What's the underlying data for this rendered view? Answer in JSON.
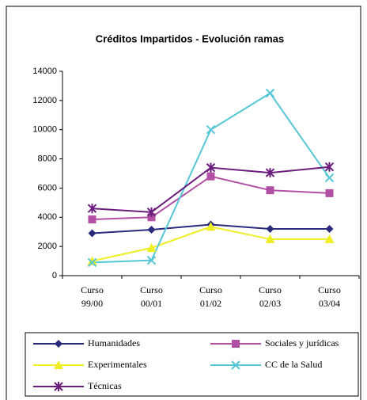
{
  "chart_data": {
    "type": "line",
    "title": "Créditos Impartidos - Evolución ramas",
    "categories": [
      [
        "Curso",
        "99/00"
      ],
      [
        "Curso",
        "00/01"
      ],
      [
        "Curso",
        "01/02"
      ],
      [
        "Curso",
        "02/03"
      ],
      [
        "Curso",
        "03/04"
      ]
    ],
    "ylim": [
      0,
      14000
    ],
    "yticks": [
      0,
      2000,
      4000,
      6000,
      8000,
      10000,
      12000,
      14000
    ],
    "grid": false,
    "legend": "bottom",
    "series": [
      {
        "name": "Humanidades",
        "color": "#2b2b7e",
        "marker": "diamond",
        "values": [
          2900,
          3150,
          3500,
          3200,
          3200
        ]
      },
      {
        "name": "Sociales y jurídicas",
        "color": "#b04fa3",
        "marker": "square",
        "values": [
          3850,
          4000,
          6800,
          5850,
          5650
        ]
      },
      {
        "name": "Experimentales",
        "color": "#eeee22",
        "marker": "triangle",
        "values": [
          1000,
          1900,
          3350,
          2500,
          2500
        ]
      },
      {
        "name": "CC de la Salud",
        "color": "#55c6d6",
        "marker": "x",
        "values": [
          900,
          1050,
          10000,
          12500,
          6700
        ]
      },
      {
        "name": "Técnicas",
        "color": "#6b1d7d",
        "marker": "star",
        "values": [
          4600,
          4350,
          7400,
          7050,
          7450
        ]
      }
    ]
  }
}
